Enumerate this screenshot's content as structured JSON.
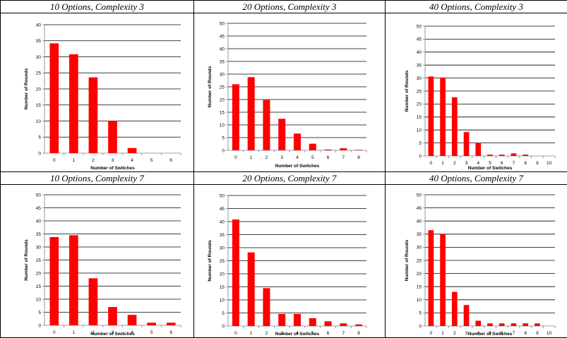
{
  "chart_data": [
    {
      "type": "bar",
      "title": "10 Options, Complexity 3",
      "xlabel": "Number of Switches",
      "ylabel": "Number of Rounds",
      "categories": [
        "0",
        "1",
        "2",
        "3",
        "4",
        "5",
        "6"
      ],
      "values": [
        34.2,
        30.8,
        23.6,
        10.0,
        1.6,
        0,
        0
      ],
      "ylim": [
        0,
        40
      ],
      "yticks": [
        0,
        5,
        10,
        15,
        20,
        25,
        30,
        35,
        40
      ]
    },
    {
      "type": "bar",
      "title": "20 Options, Complexity 3",
      "xlabel": "Number of Switches",
      "ylabel": "Number of Rounds",
      "categories": [
        "0",
        "1",
        "2",
        "3",
        "4",
        "5",
        "6",
        "7",
        "8"
      ],
      "values": [
        26.0,
        28.8,
        19.8,
        12.4,
        6.6,
        2.6,
        0.3,
        0.8,
        0.2
      ],
      "ylim": [
        0,
        50
      ],
      "yticks": [
        0,
        5,
        10,
        15,
        20,
        25,
        30,
        35,
        40,
        45,
        50
      ]
    },
    {
      "type": "bar",
      "title": "40 Options, Complexity 3",
      "xlabel": "Number of Switches",
      "ylabel": "Number of Rounds",
      "categories": [
        "0",
        "1",
        "2",
        "3",
        "4",
        "5",
        "6",
        "7",
        "8",
        "9",
        "10"
      ],
      "values": [
        30.6,
        30.2,
        22.6,
        9.2,
        5.0,
        0.5,
        0.5,
        1.0,
        0.5,
        0,
        0
      ],
      "ylim": [
        0,
        50
      ],
      "yticks": [
        0,
        5,
        10,
        15,
        20,
        25,
        30,
        35,
        40,
        45,
        50
      ]
    },
    {
      "type": "bar",
      "title": "10 Options, Complexity 7",
      "xlabel": "Number of Switches",
      "ylabel": "Number of Rounds",
      "categories": [
        "0",
        "1",
        "2",
        "3",
        "4",
        "5",
        "6"
      ],
      "values": [
        33.8,
        34.5,
        18.0,
        7.0,
        4.0,
        1.0,
        1.0
      ],
      "ylim": [
        0,
        50
      ],
      "yticks": [
        0,
        5,
        10,
        15,
        20,
        25,
        30,
        35,
        40,
        45,
        50
      ]
    },
    {
      "type": "bar",
      "title": "20 Options, Complexity 7",
      "xlabel": "Number of Switches",
      "ylabel": "Number of Rounds",
      "categories": [
        "0",
        "1",
        "2",
        "3",
        "4",
        "5",
        "6",
        "7",
        "8"
      ],
      "values": [
        40.8,
        28.2,
        14.5,
        4.6,
        4.6,
        3.0,
        1.8,
        1.0,
        0.6
      ],
      "ylim": [
        0,
        50
      ],
      "yticks": [
        0,
        5,
        10,
        15,
        20,
        25,
        30,
        35,
        40,
        45,
        50
      ]
    },
    {
      "type": "bar",
      "title": "40 Options, Complexity 7",
      "xlabel": "Number of Switches",
      "ylabel": "Number of Rounds",
      "categories": [
        "0",
        "1",
        "2",
        "3",
        "4",
        "5",
        "6",
        "7",
        "8",
        "9",
        "10"
      ],
      "values": [
        36.5,
        35.0,
        13.0,
        8.0,
        2.0,
        1.0,
        1.0,
        1.0,
        1.0,
        1.0,
        0
      ],
      "ylim": [
        0,
        50
      ],
      "yticks": [
        0,
        5,
        10,
        15,
        20,
        25,
        30,
        35,
        40,
        45,
        50
      ]
    }
  ],
  "colors": {
    "bar": "#ff0000",
    "gridline": "#000000",
    "axis": "#808080"
  }
}
